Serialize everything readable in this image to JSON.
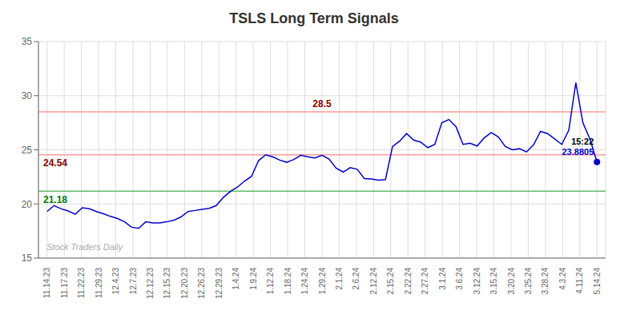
{
  "chart_data": {
    "type": "line",
    "title": "TSLS Long Term Signals",
    "grid": true,
    "color": "#0000CC",
    "xlim": [
      -0.5,
      32.5
    ],
    "xticks": [
      {
        "value": 0,
        "label": "11.14.23"
      },
      {
        "value": 1,
        "label": "11.17.23"
      },
      {
        "value": 2,
        "label": "11.22.23"
      },
      {
        "value": 3,
        "label": "11.29.23"
      },
      {
        "value": 4,
        "label": "12.4.23"
      },
      {
        "value": 5,
        "label": "12.7.23"
      },
      {
        "value": 6,
        "label": "12.12.23"
      },
      {
        "value": 7,
        "label": "12.15.23"
      },
      {
        "value": 8,
        "label": "12.20.23"
      },
      {
        "value": 9,
        "label": "12.26.23"
      },
      {
        "value": 10,
        "label": "12.29.23"
      },
      {
        "value": 11,
        "label": "1.4.24"
      },
      {
        "value": 12,
        "label": "1.9.24"
      },
      {
        "value": 13,
        "label": "1.12.24"
      },
      {
        "value": 14,
        "label": "1.18.24"
      },
      {
        "value": 15,
        "label": "1.24.24"
      },
      {
        "value": 16,
        "label": "1.29.24"
      },
      {
        "value": 17,
        "label": "2.1.24"
      },
      {
        "value": 18,
        "label": "2.6.24"
      },
      {
        "value": 19,
        "label": "2.12.24"
      },
      {
        "value": 20,
        "label": "2.15.24"
      },
      {
        "value": 21,
        "label": "2.22.24"
      },
      {
        "value": 22,
        "label": "2.27.24"
      },
      {
        "value": 23,
        "label": "3.1.24"
      },
      {
        "value": 24,
        "label": "3.6.24"
      },
      {
        "value": 25,
        "label": "3.12.24"
      },
      {
        "value": 26,
        "label": "3.15.24"
      },
      {
        "value": 27,
        "label": "3.20.24"
      },
      {
        "value": 28,
        "label": "3.25.24"
      },
      {
        "value": 29,
        "label": "3.28.24"
      },
      {
        "value": 30,
        "label": "4.3.24"
      },
      {
        "value": 31,
        "label": "4.11.24"
      },
      {
        "value": 32,
        "label": "5.14.24"
      }
    ],
    "ylim": [
      15,
      35
    ],
    "yticks": [
      15,
      20,
      25,
      30,
      35
    ],
    "x": [
      0,
      0.4103,
      0.8205,
      1.2308,
      1.641,
      2.0513,
      2.4615,
      2.8718,
      3.2821,
      3.6923,
      4.1026,
      4.5128,
      4.9231,
      5.3333,
      5.7436,
      6.1538,
      6.5641,
      6.9744,
      7.3846,
      7.7949,
      8.2051,
      8.6154,
      9.0256,
      9.4359,
      9.8462,
      10.2564,
      10.6667,
      11.0769,
      11.4872,
      11.8974,
      12.3077,
      12.7179,
      13.1282,
      13.5385,
      13.9487,
      14.359,
      14.7692,
      15.1795,
      15.5897,
      16,
      16.4103,
      16.8205,
      17.2308,
      17.641,
      18.0513,
      18.4615,
      18.8718,
      19.2821,
      19.6923,
      20.1026,
      20.5128,
      20.9231,
      21.3333,
      21.7436,
      22.1538,
      22.5641,
      22.9744,
      23.3846,
      23.7949,
      24.2051,
      24.6154,
      25.0256,
      25.4359,
      25.8462,
      26.2564,
      26.6667,
      27.0769,
      27.4872,
      27.8974,
      28.3077,
      28.7179,
      29.1282,
      29.5385,
      29.9487,
      30.359,
      30.7692,
      31.1795,
      31.5897,
      32
    ],
    "values": [
      19.3,
      19.85,
      19.55,
      19.35,
      19.05,
      19.65,
      19.55,
      19.3,
      19.1,
      18.85,
      18.65,
      18.35,
      17.85,
      17.75,
      18.35,
      18.25,
      18.25,
      18.35,
      18.5,
      18.8,
      19.3,
      19.4,
      19.5,
      19.6,
      19.85,
      20.6,
      21.15,
      21.55,
      22.1,
      22.55,
      24.0,
      24.54,
      24.35,
      24.05,
      23.85,
      24.1,
      24.5,
      24.35,
      24.25,
      24.5,
      24.15,
      23.3,
      22.95,
      23.35,
      23.2,
      22.35,
      22.3,
      22.2,
      22.25,
      25.3,
      25.8,
      26.5,
      25.9,
      25.7,
      25.2,
      25.5,
      27.5,
      27.8,
      27.15,
      25.5,
      25.6,
      25.35,
      26.1,
      26.6,
      26.2,
      25.3,
      25.0,
      25.1,
      24.8,
      25.45,
      26.7,
      26.5,
      26.0,
      25.5,
      26.8,
      31.2,
      27.5,
      26.0,
      23.8805
    ],
    "reference_lines": [
      {
        "value": 28.5,
        "label": "28.5",
        "color": "#FF9999",
        "label_color": "darkred"
      },
      {
        "value": 24.54,
        "label": "24.54",
        "color": "#FF9999",
        "label_color": "darkred"
      },
      {
        "value": 21.18,
        "label": "21.18",
        "color": "#66BB66",
        "label_color": "green"
      }
    ],
    "annotations": [
      {
        "text": "15:22",
        "color": "black"
      },
      {
        "text": "23.8805",
        "color": "#0000CC"
      },
      {
        "text": "Stock Traders Daily",
        "color": "#AAAAAA"
      }
    ]
  }
}
